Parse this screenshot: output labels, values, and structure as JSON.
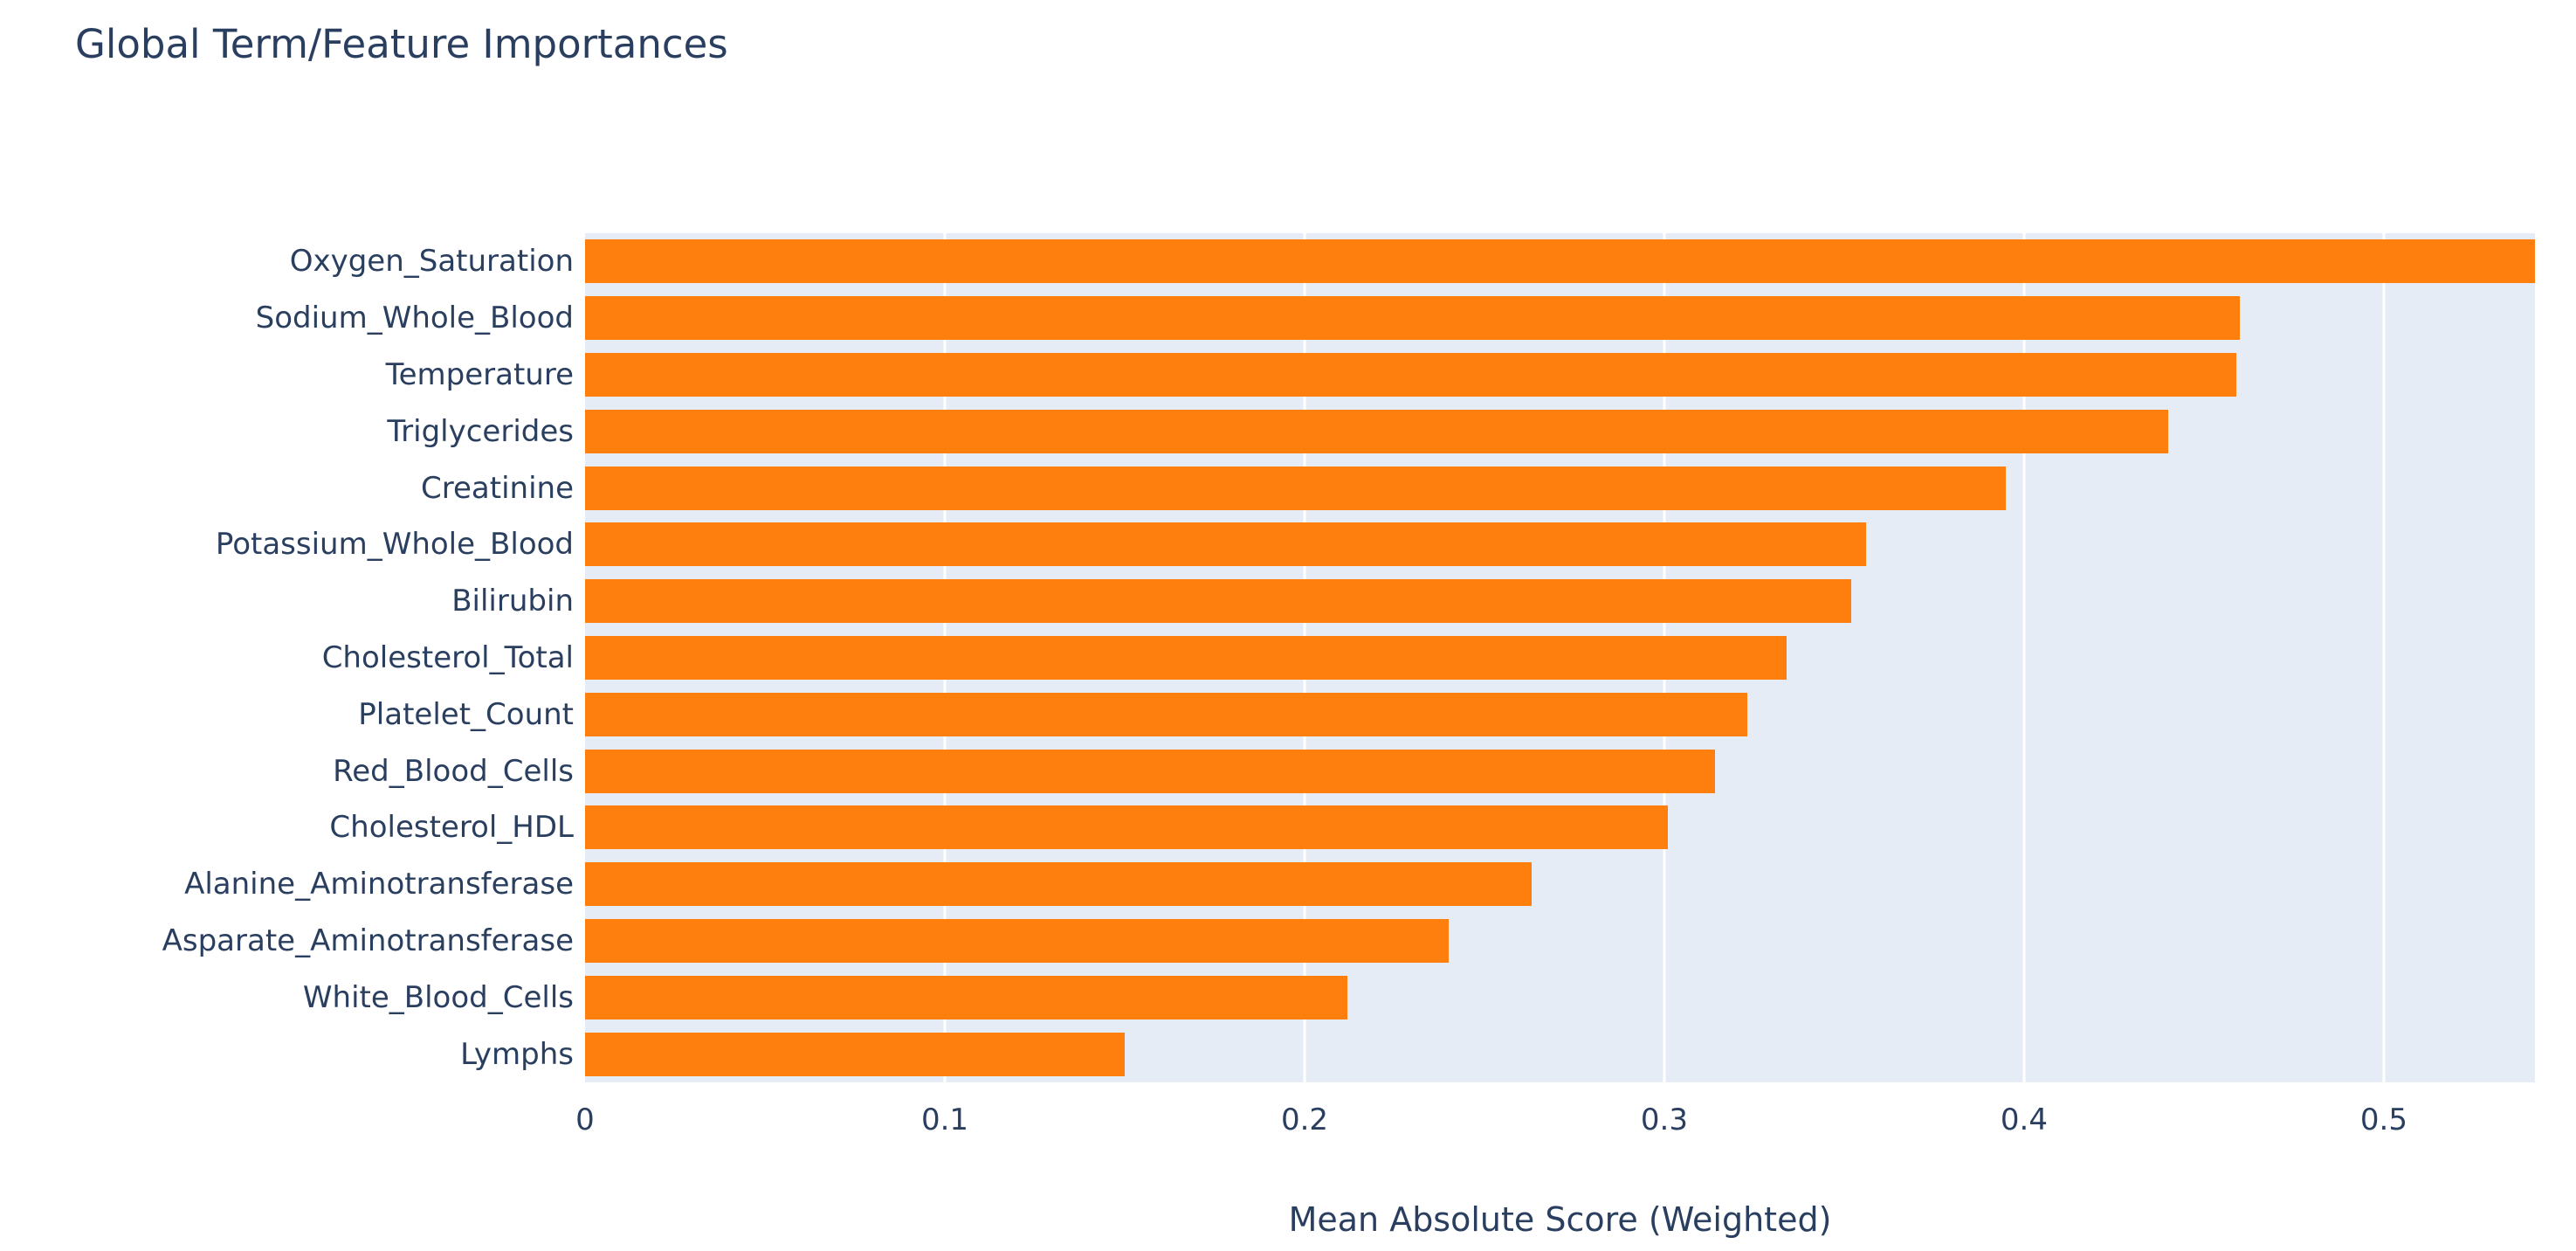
{
  "chart_data": {
    "type": "bar",
    "orientation": "horizontal",
    "title": "Global Term/Feature Importances",
    "xlabel": "Mean Absolute Score (Weighted)",
    "ylabel": "",
    "categories": [
      "Oxygen_Saturation",
      "Sodium_Whole_Blood",
      "Temperature",
      "Triglycerides",
      "Creatinine",
      "Potassium_Whole_Blood",
      "Bilirubin",
      "Cholesterol_Total",
      "Platelet_Count",
      "Red_Blood_Cells",
      "Cholesterol_HDL",
      "Alanine_Aminotransferase",
      "Asparate_Aminotransferase",
      "White_Blood_Cells",
      "Lymphs"
    ],
    "values": [
      0.542,
      0.46,
      0.459,
      0.44,
      0.395,
      0.356,
      0.352,
      0.334,
      0.323,
      0.314,
      0.301,
      0.263,
      0.24,
      0.212,
      0.15
    ],
    "xlim": [
      0,
      0.542
    ],
    "xticks": [
      0,
      0.1,
      0.2,
      0.3,
      0.4,
      0.5
    ],
    "xtick_labels": [
      "0",
      "0.1",
      "0.2",
      "0.3",
      "0.4",
      "0.5"
    ],
    "grid": true,
    "legend": "none",
    "colors": {
      "bar": "#ff7f0e",
      "plot_background": "#e5ecf6",
      "gridline": "#ffffff",
      "text": "#2a3f5f",
      "page_background": "#ffffff"
    }
  }
}
